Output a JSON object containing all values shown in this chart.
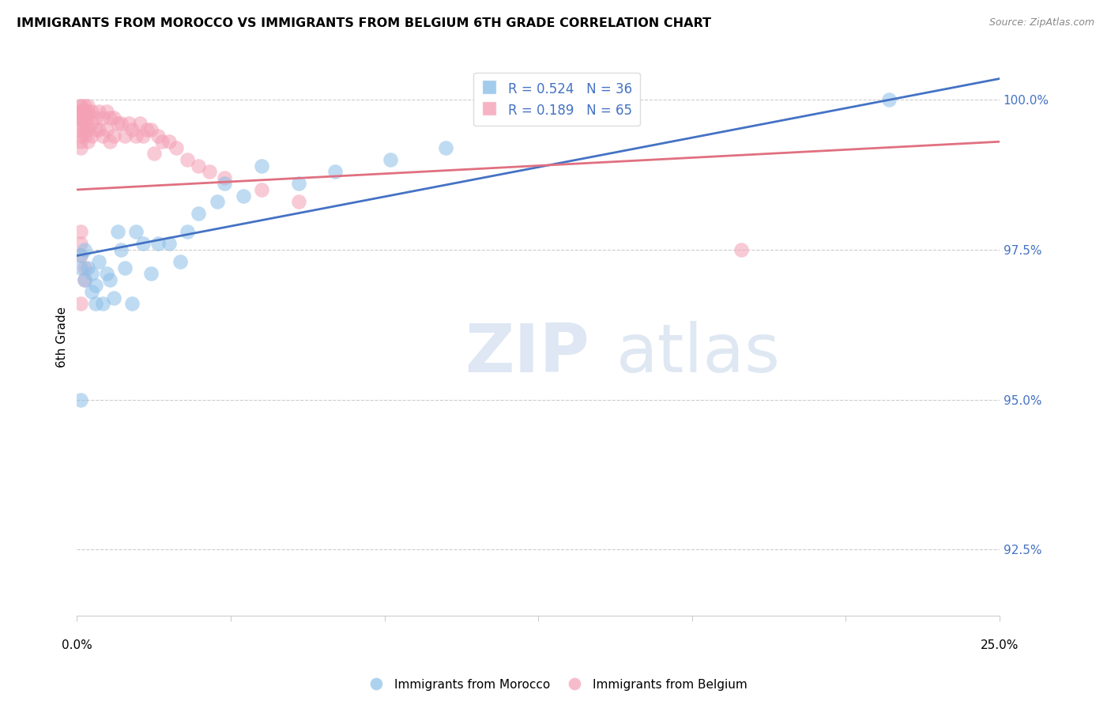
{
  "title": "IMMIGRANTS FROM MOROCCO VS IMMIGRANTS FROM BELGIUM 6TH GRADE CORRELATION CHART",
  "source": "Source: ZipAtlas.com",
  "ylabel": "6th Grade",
  "ylabel_ticks": [
    "92.5%",
    "95.0%",
    "97.5%",
    "100.0%"
  ],
  "ylabel_values": [
    0.925,
    0.95,
    0.975,
    1.0
  ],
  "x_min": 0.0,
  "x_max": 0.25,
  "y_min": 0.914,
  "y_max": 1.007,
  "legend_r_morocco": "0.524",
  "legend_n_morocco": "36",
  "legend_r_belgium": "0.189",
  "legend_n_belgium": "65",
  "morocco_color": "#8BBFE8",
  "belgium_color": "#F4A0B5",
  "morocco_line_color": "#4472C4",
  "belgium_line_color": "#E07080",
  "morocco_x": [
    0.001,
    0.001,
    0.002,
    0.002,
    0.003,
    0.004,
    0.004,
    0.005,
    0.005,
    0.006,
    0.007,
    0.008,
    0.009,
    0.01,
    0.011,
    0.012,
    0.013,
    0.015,
    0.016,
    0.018,
    0.02,
    0.022,
    0.025,
    0.028,
    0.03,
    0.033,
    0.038,
    0.04,
    0.045,
    0.05,
    0.06,
    0.07,
    0.085,
    0.1,
    0.22,
    0.001
  ],
  "morocco_y": [
    0.974,
    0.972,
    0.975,
    0.97,
    0.972,
    0.968,
    0.971,
    0.966,
    0.969,
    0.973,
    0.966,
    0.971,
    0.97,
    0.967,
    0.978,
    0.975,
    0.972,
    0.966,
    0.978,
    0.976,
    0.971,
    0.976,
    0.976,
    0.973,
    0.978,
    0.981,
    0.983,
    0.986,
    0.984,
    0.989,
    0.986,
    0.988,
    0.99,
    0.992,
    1.0,
    0.95
  ],
  "belgium_x": [
    0.001,
    0.001,
    0.001,
    0.001,
    0.001,
    0.001,
    0.001,
    0.001,
    0.001,
    0.001,
    0.001,
    0.002,
    0.002,
    0.002,
    0.002,
    0.002,
    0.002,
    0.003,
    0.003,
    0.003,
    0.003,
    0.003,
    0.004,
    0.004,
    0.004,
    0.005,
    0.005,
    0.006,
    0.006,
    0.007,
    0.007,
    0.008,
    0.008,
    0.009,
    0.009,
    0.01,
    0.01,
    0.011,
    0.012,
    0.013,
    0.014,
    0.015,
    0.016,
    0.017,
    0.018,
    0.019,
    0.02,
    0.021,
    0.022,
    0.023,
    0.025,
    0.027,
    0.03,
    0.033,
    0.036,
    0.04,
    0.05,
    0.06,
    0.001,
    0.001,
    0.001,
    0.002,
    0.002,
    0.18,
    0.001
  ],
  "belgium_y": [
    0.999,
    0.999,
    0.998,
    0.998,
    0.997,
    0.997,
    0.996,
    0.995,
    0.994,
    0.993,
    0.992,
    0.999,
    0.998,
    0.997,
    0.996,
    0.995,
    0.994,
    0.999,
    0.998,
    0.997,
    0.995,
    0.993,
    0.998,
    0.996,
    0.994,
    0.997,
    0.995,
    0.998,
    0.995,
    0.997,
    0.994,
    0.998,
    0.995,
    0.997,
    0.993,
    0.997,
    0.994,
    0.996,
    0.996,
    0.994,
    0.996,
    0.995,
    0.994,
    0.996,
    0.994,
    0.995,
    0.995,
    0.991,
    0.994,
    0.993,
    0.993,
    0.992,
    0.99,
    0.989,
    0.988,
    0.987,
    0.985,
    0.983,
    0.978,
    0.976,
    0.974,
    0.972,
    0.97,
    0.975,
    0.966
  ]
}
